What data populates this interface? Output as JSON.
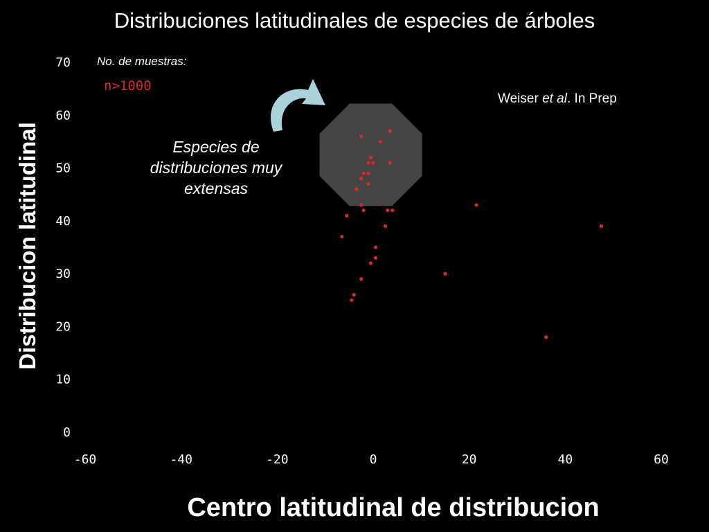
{
  "chart_data": {
    "type": "scatter",
    "title": "Distribuciones latitudinales de especies de árboles",
    "xlabel": "Centro latitudinal de distribucion",
    "ylabel": "Distribucion latitudinal",
    "xlim": [
      -60,
      60
    ],
    "ylim": [
      0,
      70
    ],
    "xticks": [
      -60,
      -40,
      -20,
      0,
      20,
      40,
      60
    ],
    "yticks": [
      0,
      10,
      20,
      30,
      40,
      50,
      60,
      70
    ],
    "grid": false,
    "point_color": "#d62a2a",
    "highlight_color": "#444444",
    "arrow_color": "#a9d2dc",
    "points": [
      {
        "x": -2.5,
        "y": 56
      },
      {
        "x": 3.5,
        "y": 57
      },
      {
        "x": 1.5,
        "y": 55
      },
      {
        "x": -0.5,
        "y": 52
      },
      {
        "x": -1,
        "y": 51
      },
      {
        "x": 0,
        "y": 51
      },
      {
        "x": 3.5,
        "y": 51
      },
      {
        "x": -2,
        "y": 49
      },
      {
        "x": -1,
        "y": 49
      },
      {
        "x": -2.5,
        "y": 48
      },
      {
        "x": -1,
        "y": 47
      },
      {
        "x": -3.5,
        "y": 46
      },
      {
        "x": -2.5,
        "y": 43
      },
      {
        "x": -2,
        "y": 42
      },
      {
        "x": 3,
        "y": 42
      },
      {
        "x": 4,
        "y": 42
      },
      {
        "x": -5.5,
        "y": 41
      },
      {
        "x": 2.5,
        "y": 39
      },
      {
        "x": -6.5,
        "y": 37
      },
      {
        "x": 0.5,
        "y": 35
      },
      {
        "x": 0.5,
        "y": 33
      },
      {
        "x": -0.5,
        "y": 32
      },
      {
        "x": -2.5,
        "y": 29
      },
      {
        "x": -4,
        "y": 26
      },
      {
        "x": -4.5,
        "y": 25
      },
      {
        "x": 15,
        "y": 30
      },
      {
        "x": 21.5,
        "y": 43
      },
      {
        "x": 36,
        "y": 18
      },
      {
        "x": 47.5,
        "y": 39
      }
    ],
    "annotations": {
      "samples_label": "No. de muestras:",
      "samples_value": "n>1000",
      "citation": {
        "pre": "Weiser ",
        "em": "et al",
        "post": ". In Prep"
      },
      "note": "Especies de distribuciones muy extensas"
    }
  }
}
